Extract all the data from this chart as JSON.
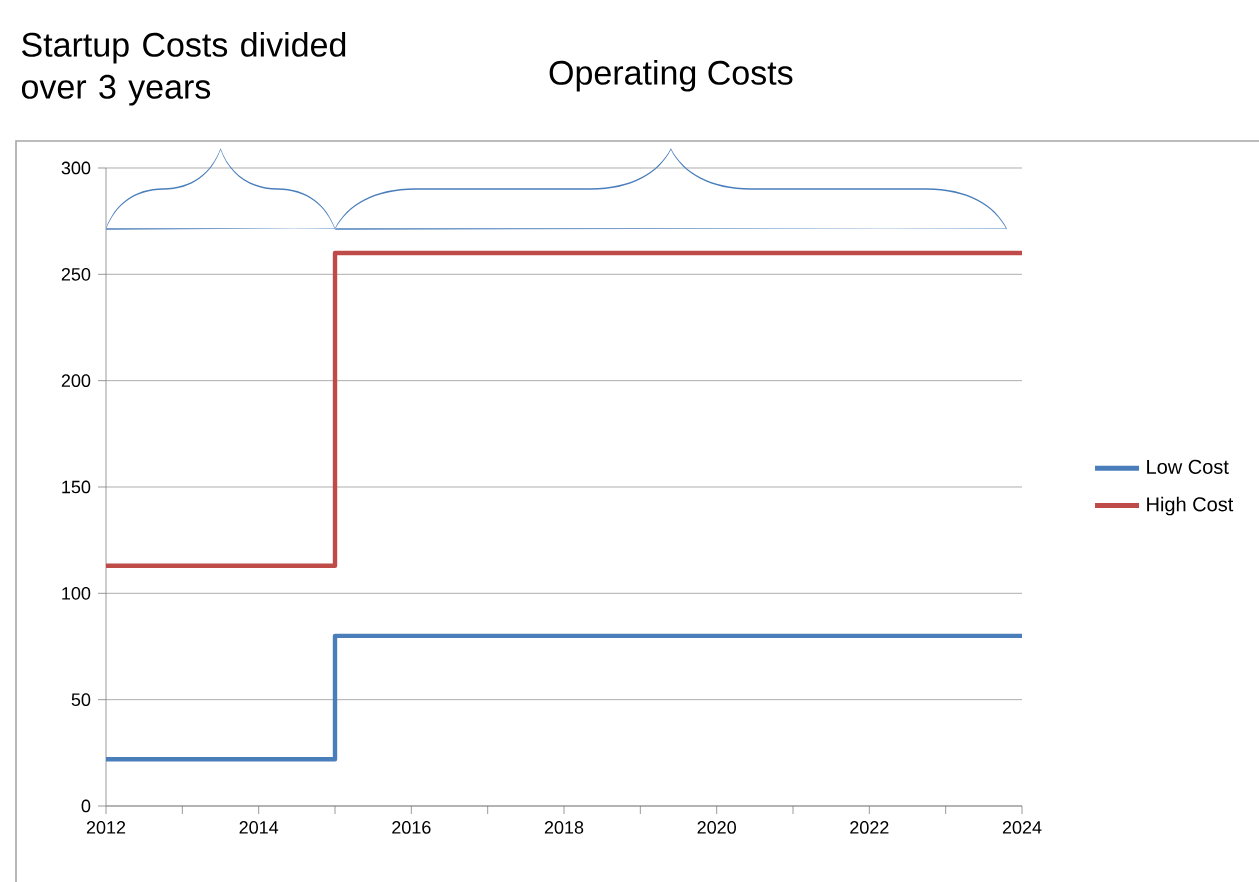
{
  "chart_data": {
    "type": "step",
    "annotations": [
      "Startup Costs divided over 3 years",
      "Operating Costs"
    ],
    "x": [
      2012,
      2015,
      2024
    ],
    "series": [
      {
        "name": "Low Cost",
        "color": "#4a7ebb",
        "values": [
          22,
          80,
          80
        ]
      },
      {
        "name": "High Cost",
        "color": "#be4b48",
        "values": [
          113,
          260,
          260
        ]
      }
    ],
    "xlim": [
      2012,
      2024
    ],
    "xticks": [
      2012,
      2014,
      2016,
      2018,
      2020,
      2022,
      2024
    ],
    "ylim": [
      0,
      300
    ],
    "yticks": [
      0,
      50,
      100,
      150,
      200,
      250,
      300
    ],
    "grid": "y",
    "legend": "right",
    "line_style": "solid",
    "marker": "none"
  }
}
